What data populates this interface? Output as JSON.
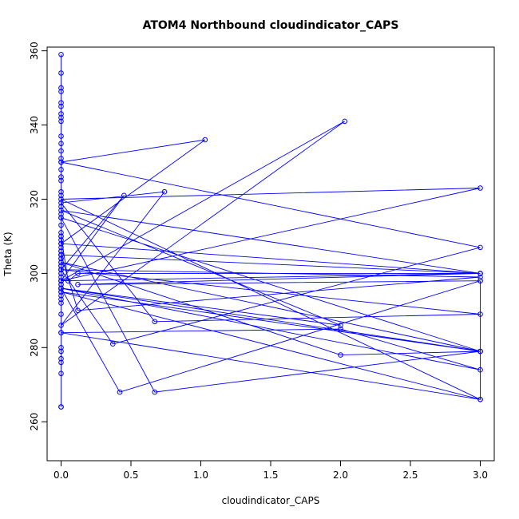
{
  "chart_data": {
    "type": "line",
    "title": "ATOM4 Northbound cloudindicator_CAPS",
    "xlabel": "cloudindicator_CAPS",
    "ylabel": "Theta (K)",
    "xlim": [
      -0.1,
      3.1
    ],
    "ylim": [
      249.5,
      361
    ],
    "xticks": [
      "0.0",
      "0.5",
      "1.0",
      "1.5",
      "2.0",
      "2.5",
      "3.0"
    ],
    "xtick_values": [
      0,
      0.5,
      1,
      1.5,
      2,
      2.5,
      3
    ],
    "yticks": [
      "260",
      "280",
      "300",
      "320",
      "340",
      "360"
    ],
    "ytick_values": [
      260,
      280,
      300,
      320,
      340,
      360
    ],
    "grid": false,
    "color": "#0000ff",
    "series": [
      {
        "marker": "open-circle",
        "x": [
          0,
          0,
          0,
          0,
          0,
          0,
          0,
          0,
          0,
          0,
          0,
          0,
          0,
          0,
          0,
          0,
          0,
          0,
          0,
          0,
          0,
          0,
          0,
          0,
          0,
          0,
          0,
          0,
          0,
          0,
          0,
          0,
          0,
          0,
          0,
          0,
          0,
          0,
          0,
          0,
          0,
          0,
          0,
          0,
          0,
          0,
          0,
          0,
          0,
          0,
          0,
          0,
          0,
          0,
          0,
          0,
          0,
          0,
          0,
          0,
          0.05,
          0.12,
          3.0,
          3.0,
          0.12,
          3.0,
          0.42,
          0.0,
          2.0,
          0.0,
          3.0,
          0.0,
          0.12,
          3.0,
          0.0,
          0.37,
          3.0,
          0.0,
          1.03,
          0.0,
          3.0,
          0.0,
          2.03,
          0.0,
          0.74,
          0.0,
          0.67,
          3.0,
          0.0,
          0.45,
          0.0,
          3.0,
          0.0,
          3.0,
          0.0,
          2.0,
          3.0,
          0.0,
          3.0,
          0.0,
          0.67,
          3.0,
          0.0,
          2.0,
          3.0,
          0.0,
          3.0,
          3.0
        ],
        "y": [
          359,
          354,
          350,
          349,
          346,
          345,
          343,
          342,
          341,
          337,
          335,
          333,
          331,
          330,
          328,
          326,
          325,
          322,
          321,
          318,
          316,
          315,
          313,
          311,
          310,
          306,
          305,
          304,
          303,
          302,
          301,
          300,
          299,
          298,
          297,
          296,
          295,
          294,
          293,
          292,
          289,
          284,
          280,
          279,
          277,
          276,
          273,
          264,
          264,
          296,
          297,
          300,
          302,
          304,
          305,
          306,
          307,
          308,
          309,
          310,
          298,
          300,
          300,
          300,
          297,
          298,
          268,
          296,
          286,
          317,
          300,
          305,
          290,
          299,
          301,
          281,
          307,
          330,
          336,
          308,
          300,
          298,
          341,
          286,
          322,
          319,
          287,
          289,
          301,
          321,
          298,
          323,
          320,
          266,
          284,
          285,
          274,
          296,
          279,
          315,
          268,
          279,
          303,
          278,
          279,
          295,
          266,
          298
        ]
      }
    ]
  }
}
